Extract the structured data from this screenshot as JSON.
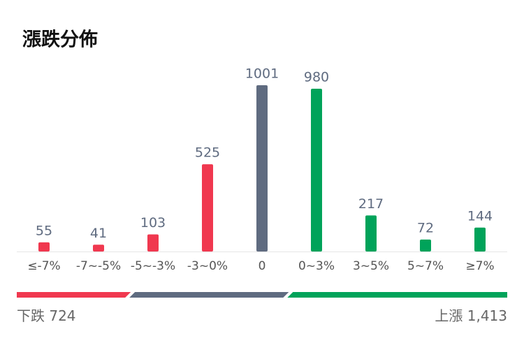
{
  "chart_data": {
    "type": "bar",
    "title": "漲跌分佈",
    "categories": [
      "≤-7%",
      "-7~-5%",
      "-5~-3%",
      "-3~0%",
      "0",
      "0~3%",
      "3~5%",
      "5~7%",
      "≥7%"
    ],
    "values": [
      55,
      41,
      103,
      525,
      1001,
      980,
      217,
      72,
      144
    ],
    "colors": [
      "#f0384f",
      "#f0384f",
      "#f0384f",
      "#f0384f",
      "#5f6b80",
      "#00a35a",
      "#00a35a",
      "#00a35a",
      "#00a35a"
    ],
    "summary": {
      "down": {
        "label": "下跌",
        "value": 724,
        "color": "#f0384f"
      },
      "flat": {
        "value": 1001,
        "color": "#5f6b80"
      },
      "up": {
        "label": "上漲",
        "value": 1413,
        "value_label": "1,413",
        "color": "#00a35a"
      }
    }
  }
}
